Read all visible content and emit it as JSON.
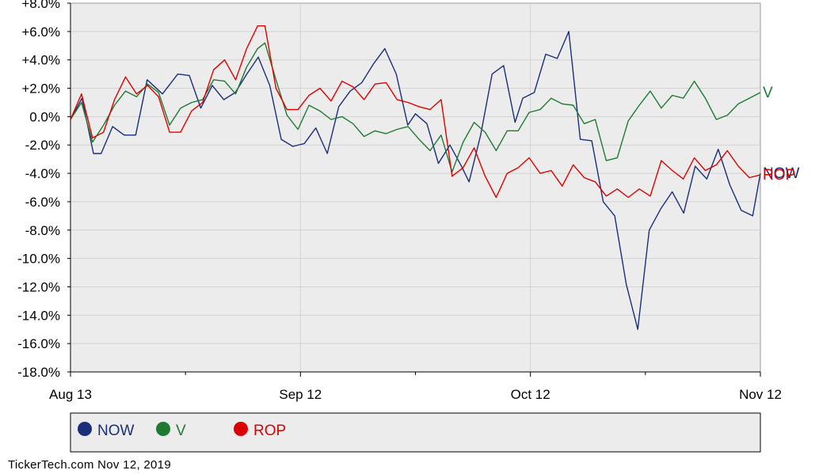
{
  "chart_data": {
    "type": "line",
    "ylim": [
      -18,
      8
    ],
    "xlim": [
      0,
      90
    ],
    "grid": true,
    "y_ticks": [
      {
        "value": 8,
        "label": "+8.0%"
      },
      {
        "value": 6,
        "label": "+6.0%"
      },
      {
        "value": 4,
        "label": "+4.0%"
      },
      {
        "value": 2,
        "label": "+2.0%"
      },
      {
        "value": 0,
        "label": "0.0%"
      },
      {
        "value": -2,
        "label": "-2.0%"
      },
      {
        "value": -4,
        "label": "-4.0%"
      },
      {
        "value": -6,
        "label": "-6.0%"
      },
      {
        "value": -8,
        "label": "-8.0%"
      },
      {
        "value": -10,
        "label": "-10.0%"
      },
      {
        "value": -12,
        "label": "-12.0%"
      },
      {
        "value": -14,
        "label": "-14.0%"
      },
      {
        "value": -16,
        "label": "-16.0%"
      },
      {
        "value": -18,
        "label": "-18.0%"
      }
    ],
    "x_ticks": [
      {
        "value": 0,
        "label": "Aug 13"
      },
      {
        "value": 30,
        "label": "Sep 12"
      },
      {
        "value": 60,
        "label": "Oct 12"
      },
      {
        "value": 90,
        "label": "Nov 12"
      }
    ],
    "x_minor_ticks": [
      15,
      45,
      75
    ],
    "series": [
      {
        "name": "NOW",
        "color": "#1a2e7a",
        "end_label": "NOW",
        "points": [
          [
            0,
            -0.2
          ],
          [
            1.5,
            1.3
          ],
          [
            3,
            -2.6
          ],
          [
            4,
            -2.6
          ],
          [
            5.5,
            -0.7
          ],
          [
            7,
            -1.3
          ],
          [
            8.5,
            -1.3
          ],
          [
            10,
            2.6
          ],
          [
            12,
            1.6
          ],
          [
            14,
            3.0
          ],
          [
            15.5,
            2.9
          ],
          [
            17,
            0.6
          ],
          [
            18.5,
            2.2
          ],
          [
            20,
            1.2
          ],
          [
            21.5,
            1.7
          ],
          [
            23,
            3.0
          ],
          [
            24.5,
            4.2
          ],
          [
            26,
            2.2
          ],
          [
            27.5,
            -1.6
          ],
          [
            29,
            -2.1
          ],
          [
            30.5,
            -1.9
          ],
          [
            32,
            -0.8
          ],
          [
            33.5,
            -2.6
          ],
          [
            35,
            0.7
          ],
          [
            36.5,
            1.8
          ],
          [
            38,
            2.4
          ],
          [
            39.5,
            3.7
          ],
          [
            41,
            4.8
          ],
          [
            42.5,
            3.0
          ],
          [
            44,
            -0.6
          ],
          [
            45,
            0.2
          ],
          [
            46.5,
            -0.5
          ],
          [
            48,
            -3.3
          ],
          [
            49.5,
            -2.0
          ],
          [
            51,
            -3.5
          ],
          [
            52,
            -4.6
          ],
          [
            53.5,
            -1.3
          ],
          [
            55,
            3.0
          ],
          [
            56.5,
            3.6
          ],
          [
            58,
            -0.4
          ],
          [
            59,
            1.3
          ],
          [
            60.5,
            1.7
          ],
          [
            62,
            4.4
          ],
          [
            63.5,
            4.1
          ],
          [
            65,
            6.0
          ],
          [
            66.5,
            -1.6
          ],
          [
            68,
            -1.7
          ],
          [
            69.5,
            -6.0
          ],
          [
            71,
            -7.0
          ],
          [
            72.5,
            -11.8
          ],
          [
            74,
            -15.0
          ],
          [
            75.5,
            -8.0
          ],
          [
            77,
            -6.5
          ],
          [
            78.5,
            -5.3
          ],
          [
            80,
            -6.8
          ],
          [
            81.5,
            -3.5
          ],
          [
            83,
            -4.4
          ],
          [
            84.5,
            -2.3
          ],
          [
            86,
            -4.8
          ],
          [
            87.5,
            -6.6
          ],
          [
            89,
            -7.0
          ],
          [
            90,
            -4.0
          ]
        ]
      },
      {
        "name": "V",
        "color": "#1e7a32",
        "end_label": "V",
        "points": [
          [
            0,
            -0.2
          ],
          [
            1.5,
            1.0
          ],
          [
            3,
            -1.8
          ],
          [
            4.5,
            -0.6
          ],
          [
            6,
            0.8
          ],
          [
            7.5,
            1.8
          ],
          [
            9,
            1.4
          ],
          [
            10.5,
            2.3
          ],
          [
            12,
            1.7
          ],
          [
            13.5,
            -0.6
          ],
          [
            15,
            0.6
          ],
          [
            16.5,
            1.0
          ],
          [
            18,
            1.2
          ],
          [
            19.5,
            2.6
          ],
          [
            21,
            2.5
          ],
          [
            22.5,
            1.6
          ],
          [
            24,
            3.5
          ],
          [
            25.5,
            4.8
          ],
          [
            26.5,
            5.2
          ],
          [
            28,
            2.6
          ],
          [
            29.5,
            0.1
          ],
          [
            31,
            -0.9
          ],
          [
            32.5,
            0.8
          ],
          [
            34,
            0.4
          ],
          [
            35.5,
            -0.2
          ],
          [
            37,
            0.0
          ],
          [
            38.5,
            -0.5
          ],
          [
            40,
            -1.4
          ],
          [
            41.5,
            -1.0
          ],
          [
            43,
            -1.2
          ],
          [
            44.5,
            -0.9
          ],
          [
            46,
            -0.7
          ],
          [
            47.5,
            -1.6
          ],
          [
            49,
            -2.4
          ],
          [
            50.5,
            -1.3
          ],
          [
            52,
            -3.9
          ],
          [
            53.5,
            -1.8
          ],
          [
            55,
            -0.4
          ],
          [
            56.5,
            -1.1
          ],
          [
            58,
            -2.4
          ],
          [
            59.5,
            -1.0
          ],
          [
            61,
            -1.0
          ],
          [
            62.5,
            0.3
          ],
          [
            64,
            0.5
          ],
          [
            65.5,
            1.3
          ],
          [
            67,
            0.9
          ],
          [
            68.5,
            0.8
          ],
          [
            70,
            -0.5
          ],
          [
            71.5,
            -0.2
          ],
          [
            73,
            -3.1
          ],
          [
            74.5,
            -2.9
          ],
          [
            76,
            -0.3
          ],
          [
            77.5,
            0.8
          ],
          [
            79,
            1.8
          ],
          [
            80.5,
            0.6
          ],
          [
            82,
            1.5
          ],
          [
            83.5,
            1.3
          ],
          [
            85,
            2.5
          ],
          [
            86.5,
            1.3
          ],
          [
            88,
            -0.2
          ],
          [
            89.5,
            0.1
          ],
          [
            91,
            0.9
          ],
          [
            92.5,
            1.3
          ],
          [
            94,
            1.7
          ]
        ]
      },
      {
        "name": "ROP",
        "color": "#dd0000",
        "end_label": "ROP",
        "points": [
          [
            0,
            -0.2
          ],
          [
            1.5,
            1.6
          ],
          [
            3,
            -1.5
          ],
          [
            4.5,
            -1.1
          ],
          [
            6,
            1.2
          ],
          [
            7.5,
            2.8
          ],
          [
            9,
            1.6
          ],
          [
            10.5,
            2.2
          ],
          [
            12,
            1.4
          ],
          [
            13.5,
            -1.1
          ],
          [
            15,
            -1.1
          ],
          [
            16.5,
            0.4
          ],
          [
            18,
            1.0
          ],
          [
            19.5,
            3.3
          ],
          [
            21,
            4.0
          ],
          [
            22.5,
            2.6
          ],
          [
            24,
            4.8
          ],
          [
            25.5,
            6.4
          ],
          [
            26.5,
            6.4
          ],
          [
            28,
            2.0
          ],
          [
            29.5,
            0.5
          ],
          [
            31,
            0.5
          ],
          [
            32.5,
            1.5
          ],
          [
            34,
            2.0
          ],
          [
            35.5,
            1.1
          ],
          [
            37,
            2.5
          ],
          [
            38.5,
            2.1
          ],
          [
            40,
            1.2
          ],
          [
            41.5,
            2.3
          ],
          [
            43,
            2.4
          ],
          [
            44.5,
            1.2
          ],
          [
            46,
            1.0
          ],
          [
            47.5,
            0.7
          ],
          [
            49,
            0.5
          ],
          [
            50.5,
            1.2
          ],
          [
            52,
            -4.2
          ],
          [
            53.5,
            -3.6
          ],
          [
            55,
            -2.2
          ],
          [
            56.5,
            -4.2
          ],
          [
            58,
            -5.7
          ],
          [
            59.5,
            -4.0
          ],
          [
            61,
            -3.6
          ],
          [
            62.5,
            -2.9
          ],
          [
            64,
            -4.0
          ],
          [
            65.5,
            -3.8
          ],
          [
            67,
            -4.9
          ],
          [
            68.5,
            -3.4
          ],
          [
            70,
            -4.3
          ],
          [
            71.5,
            -4.6
          ],
          [
            73,
            -5.6
          ],
          [
            74.5,
            -5.1
          ],
          [
            76,
            -5.7
          ],
          [
            77.5,
            -5.1
          ],
          [
            79,
            -5.6
          ],
          [
            80.5,
            -3.1
          ],
          [
            82,
            -3.8
          ],
          [
            83.5,
            -4.4
          ],
          [
            85,
            -2.9
          ],
          [
            86.5,
            -3.8
          ],
          [
            88,
            -3.4
          ],
          [
            89.5,
            -2.4
          ],
          [
            91,
            -3.5
          ],
          [
            92.5,
            -4.3
          ],
          [
            94,
            -4.1
          ]
        ]
      }
    ]
  },
  "legend": {
    "items": [
      {
        "label": "NOW",
        "color": "#1a2e7a"
      },
      {
        "label": "V",
        "color": "#1e7a32"
      },
      {
        "label": "ROP",
        "color": "#dd0000"
      }
    ]
  },
  "footer": {
    "source": "TickerTech.com  Nov 12, 2019"
  }
}
